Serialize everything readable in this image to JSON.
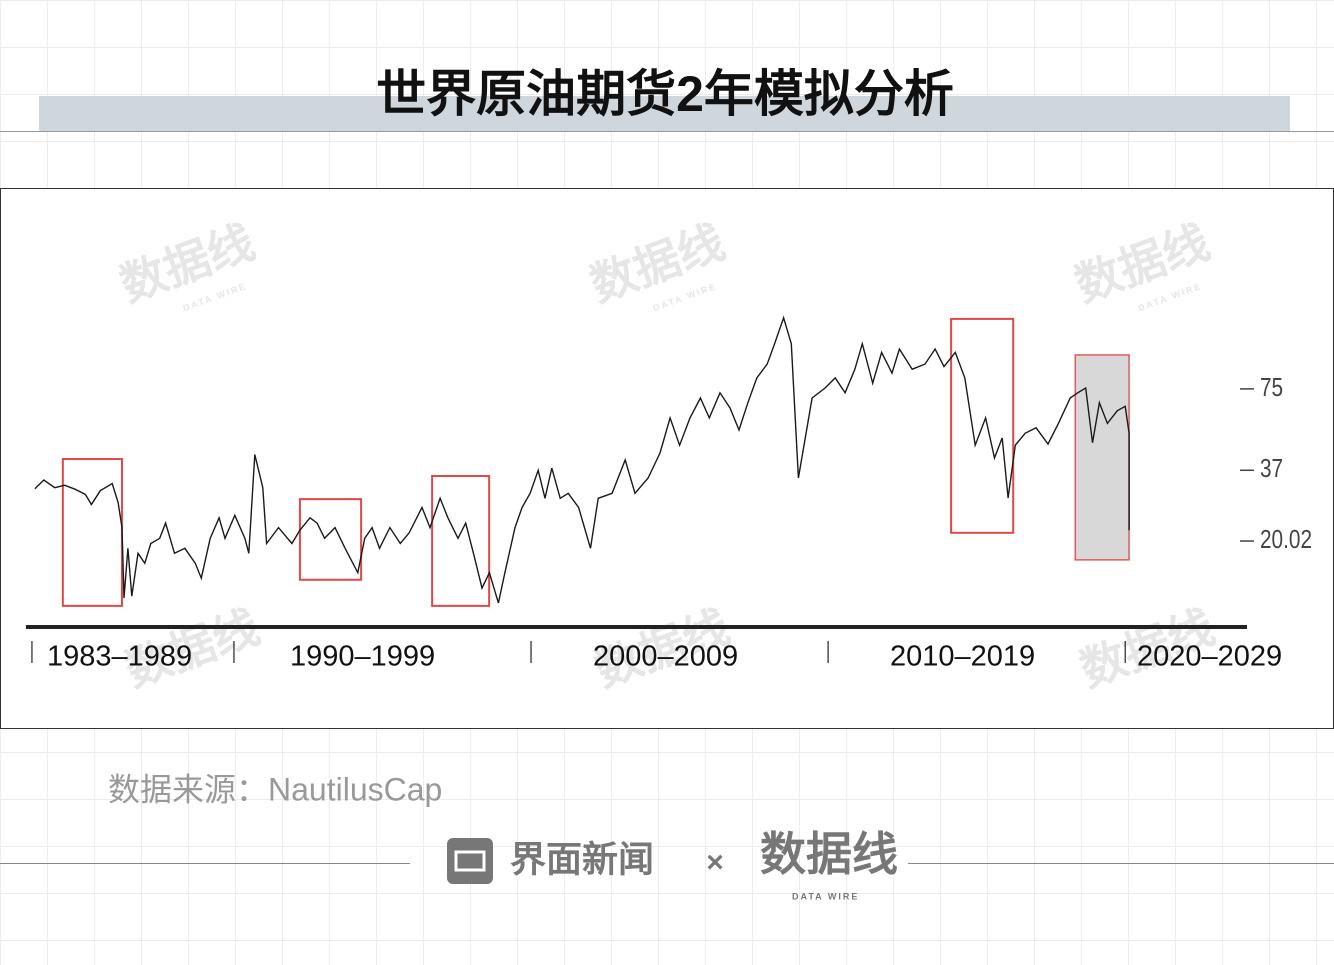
{
  "title": "世界原油期货2年模拟分析",
  "chart_data": {
    "type": "line",
    "log_scale": true,
    "color": "#1a1a1a",
    "box_color": "#e04848",
    "ylim": [
      11,
      140
    ],
    "yticks": [
      75,
      37,
      20.02
    ],
    "xlim": [
      1983,
      2024.1
    ],
    "xticks": [
      1983.2,
      1990,
      2000,
      2010,
      2020
    ],
    "periods": [
      "1983–1989",
      "1990–1999",
      "2000–2009",
      "2010–2019",
      "2020–2029"
    ],
    "x": [
      1983.3,
      1983.6,
      1983.97,
      1984.3,
      1984.65,
      1985,
      1985.2,
      1985.5,
      1985.9,
      1986.1,
      1986.23,
      1986.3,
      1986.43,
      1986.56,
      1986.77,
      1987,
      1987.2,
      1987.5,
      1987.7,
      1988,
      1988.35,
      1988.7,
      1988.9,
      1989.2,
      1989.5,
      1989.7,
      1990.03,
      1990.37,
      1990.5,
      1990.7,
      1990.97,
      1991.1,
      1991.5,
      1991.95,
      1992.22,
      1992.56,
      1992.8,
      1993.05,
      1993.4,
      1993.74,
      1994.17,
      1994.4,
      1994.65,
      1994.9,
      1995.25,
      1995.6,
      1995.9,
      1996.33,
      1996.6,
      1996.94,
      1997.2,
      1997.54,
      1997.8,
      1998.1,
      1998.35,
      1998.6,
      1998.9,
      1999.12,
      1999.46,
      1999.7,
      1999.97,
      2000.24,
      2000.47,
      2000.7,
      2000.98,
      2001.25,
      2001.6,
      2002,
      2002.26,
      2002.73,
      2003.17,
      2003.5,
      2003.94,
      2004.34,
      2004.68,
      2005,
      2005.35,
      2005.7,
      2006,
      2006.36,
      2006.7,
      2007,
      2007.3,
      2007.6,
      2007.95,
      2008.2,
      2008.5,
      2008.76,
      2009,
      2009.46,
      2009.9,
      2010.24,
      2010.57,
      2010.9,
      2011.15,
      2011.5,
      2011.8,
      2012.15,
      2012.4,
      2012.83,
      2013.26,
      2013.6,
      2013.9,
      2014.28,
      2014.6,
      2014.95,
      2015.3,
      2015.6,
      2015.86,
      2016.06,
      2016.3,
      2016.63,
      2017,
      2017.4,
      2017.75,
      2018.15,
      2018.4,
      2018.67,
      2018.9,
      2019.13,
      2019.4,
      2019.73,
      2020,
      2020.13,
      2020.13
    ],
    "values": [
      31.5,
      34,
      31.8,
      32.5,
      31.4,
      30,
      27.5,
      31,
      33,
      28,
      22.5,
      12.2,
      18.8,
      12.4,
      18,
      16.5,
      19.6,
      20.5,
      23.4,
      18,
      18.8,
      16.5,
      14.5,
      20.5,
      24.5,
      20.5,
      25,
      20.5,
      18,
      42.4,
      31.8,
      19.6,
      22.5,
      19.6,
      22,
      24.5,
      23.4,
      20.5,
      22.5,
      18.8,
      15.2,
      20.5,
      22.5,
      18.8,
      22.5,
      19.6,
      21.5,
      26.8,
      22.5,
      29,
      24.5,
      20.5,
      23.4,
      17.3,
      13.3,
      15.2,
      11.7,
      15.2,
      22.5,
      26.8,
      30.3,
      37,
      29,
      37.7,
      29,
      30.3,
      26.8,
      18.8,
      29,
      30.3,
      40.5,
      30.3,
      34.6,
      43,
      58.3,
      46,
      58.3,
      69.3,
      58.3,
      72.5,
      63.5,
      52.5,
      66.5,
      82.5,
      93,
      111,
      139,
      111,
      34.6,
      69.3,
      75.6,
      82.5,
      72.5,
      89,
      111,
      78.8,
      103,
      86,
      106,
      89,
      93,
      106,
      91,
      103,
      82.5,
      46,
      58.3,
      41.2,
      49,
      29.1,
      46,
      51,
      53.5,
      46.5,
      55.6,
      69.3,
      72.5,
      75.6,
      47,
      66.5,
      55.6,
      62,
      64.5,
      51,
      22
    ],
    "highlights": [
      {
        "x": [
          1984.24,
          1986.23
        ],
        "y": [
          40.8,
          11.4
        ]
      },
      {
        "x": [
          1992.22,
          1994.28
        ],
        "y": [
          28.8,
          14.3
        ]
      },
      {
        "x": [
          1996.67,
          1998.59
        ],
        "y": [
          35.2,
          11.4
        ]
      },
      {
        "x": [
          2014.14,
          2016.23
        ],
        "y": [
          137.7,
          21.5
        ]
      },
      {
        "x": [
          2018.32,
          2020.13
        ],
        "y": [
          100.7,
          17
        ],
        "fill": "#d4d4d4"
      }
    ]
  },
  "source": "数据来源：NautilusCap",
  "footer": {
    "brand": "界面新闻",
    "times": "×",
    "partner": "数据线",
    "partner_en": "DATA WIRE"
  },
  "watermark": {
    "text": "数据线",
    "sub": "DATA WIRE"
  }
}
